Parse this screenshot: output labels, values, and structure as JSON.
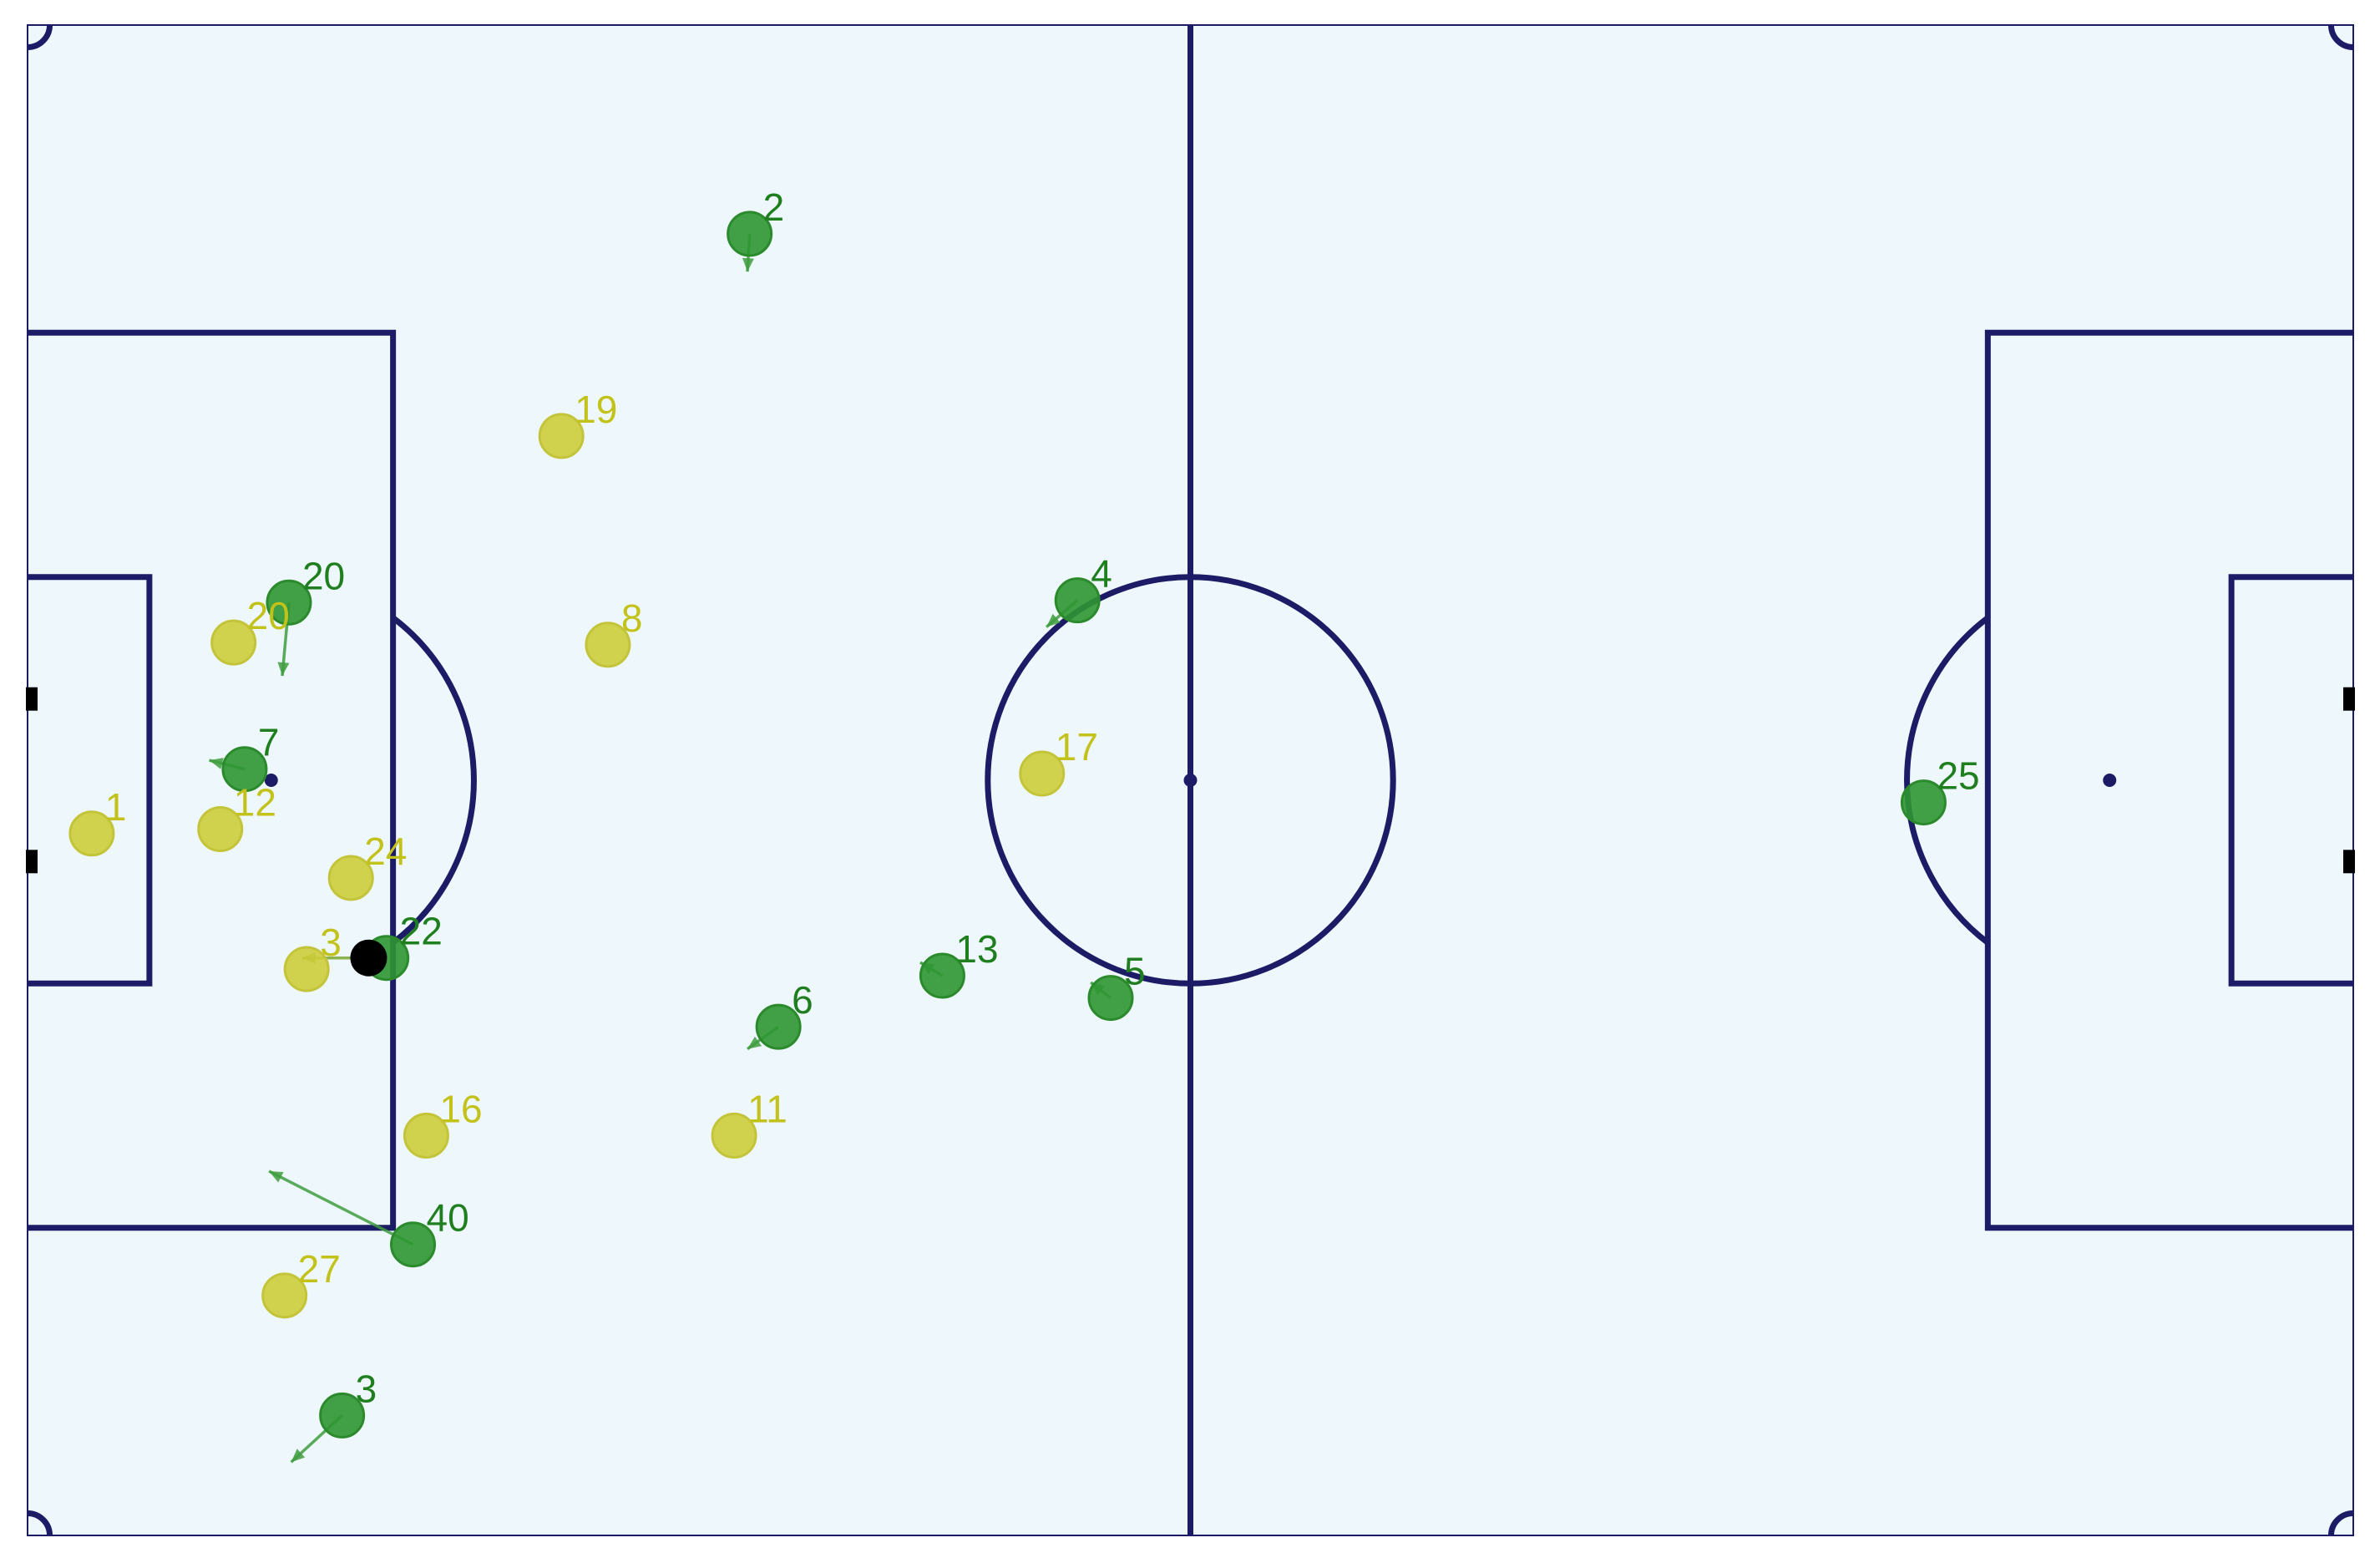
{
  "colors": {
    "pitch_bg": "#eef7fc",
    "lines": "#1b1b66",
    "team_green": "#2e9632",
    "team_green_text": "#1f7f1f",
    "team_yellow": "#cccc3a",
    "team_yellow_text": "#c2c21a",
    "ball": "#000000"
  },
  "pitch": {
    "length": 105,
    "width": 68
  },
  "players": [
    {
      "team": "green",
      "number": "2",
      "x": 32.6,
      "y": 9.4,
      "vx": -0.1,
      "vy": 1.7
    },
    {
      "team": "green",
      "number": "20",
      "x": 11.8,
      "y": 26.0,
      "vx": -0.3,
      "vy": 3.3
    },
    {
      "team": "green",
      "number": "7",
      "x": 9.8,
      "y": 33.5,
      "vx": -1.6,
      "vy": -0.4
    },
    {
      "team": "green",
      "number": "22",
      "x": 16.2,
      "y": 42.0,
      "vx": 0.0,
      "vy": 0.0
    },
    {
      "team": "green",
      "number": "40",
      "x": 17.4,
      "y": 54.9,
      "vx": -6.5,
      "vy": -3.3
    },
    {
      "team": "green",
      "number": "3",
      "x": 14.2,
      "y": 62.6,
      "vx": -2.3,
      "vy": 2.1
    },
    {
      "team": "green",
      "number": "6",
      "x": 33.9,
      "y": 45.1,
      "vx": -1.4,
      "vy": 1.0
    },
    {
      "team": "green",
      "number": "13",
      "x": 41.3,
      "y": 42.8,
      "vx": -1.0,
      "vy": -0.6
    },
    {
      "team": "green",
      "number": "5",
      "x": 48.9,
      "y": 43.8,
      "vx": -0.9,
      "vy": -0.7
    },
    {
      "team": "green",
      "number": "4",
      "x": 47.4,
      "y": 25.9,
      "vx": -1.4,
      "vy": 1.2
    },
    {
      "team": "green",
      "number": "25",
      "x": 85.6,
      "y": 35.0,
      "vx": 0.0,
      "vy": 0.0
    },
    {
      "team": "yellow",
      "number": "19",
      "x": 24.1,
      "y": 18.5
    },
    {
      "team": "yellow",
      "number": "8",
      "x": 26.2,
      "y": 27.9
    },
    {
      "team": "yellow",
      "number": "20",
      "x": 9.3,
      "y": 27.8
    },
    {
      "team": "yellow",
      "number": "12",
      "x": 8.7,
      "y": 36.2
    },
    {
      "team": "yellow",
      "number": "1",
      "x": 2.9,
      "y": 36.4
    },
    {
      "team": "yellow",
      "number": "24",
      "x": 14.6,
      "y": 38.4
    },
    {
      "team": "yellow",
      "number": "3",
      "x": 12.6,
      "y": 42.5
    },
    {
      "team": "yellow",
      "number": "16",
      "x": 18.0,
      "y": 50.0
    },
    {
      "team": "yellow",
      "number": "11",
      "x": 31.9,
      "y": 50.0
    },
    {
      "team": "yellow",
      "number": "27",
      "x": 11.6,
      "y": 57.2
    },
    {
      "team": "yellow",
      "number": "17",
      "x": 45.8,
      "y": 33.7
    }
  ],
  "ball": {
    "x": 15.4,
    "y": 42.0
  },
  "ball_velocity": {
    "vx": -3.0,
    "vy": 0.0
  }
}
